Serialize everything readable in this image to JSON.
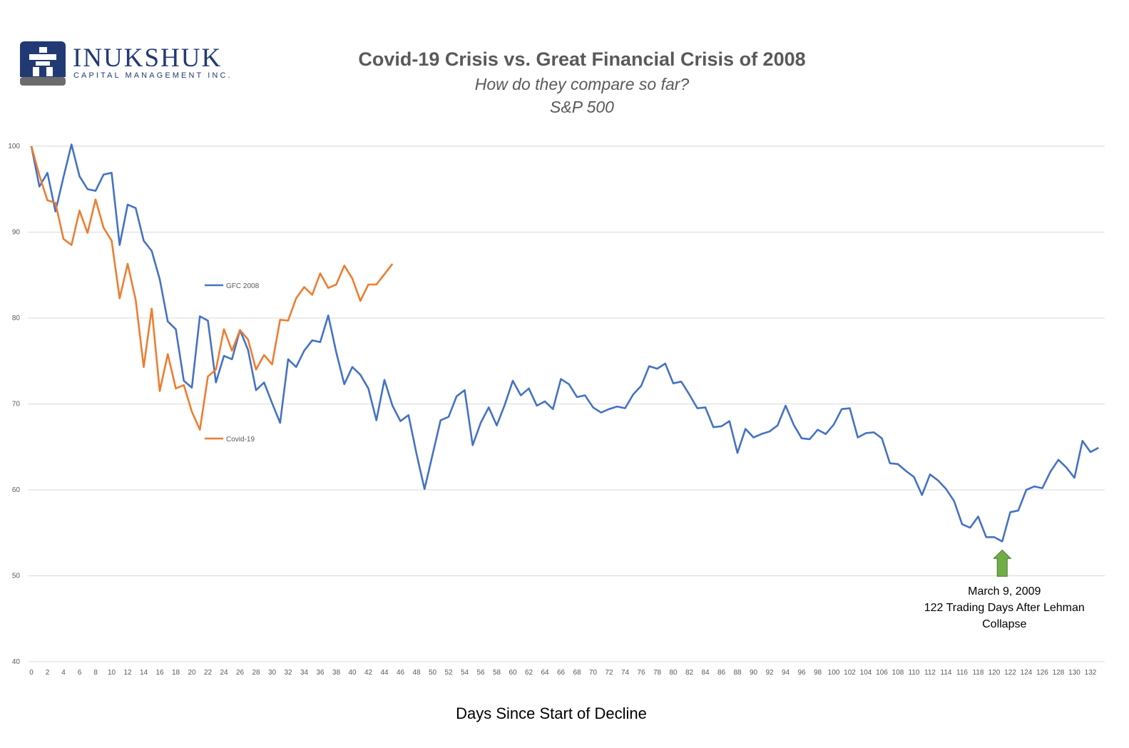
{
  "logo": {
    "name": "INUKSHUK",
    "tagline": "CAPITAL MANAGEMENT INC."
  },
  "chart_data": {
    "type": "line",
    "title": "Covid-19 Crisis vs. Great Financial Crisis of 2008",
    "subtitle_lines": [
      "How do they compare so far?",
      "S&P 500"
    ],
    "xlabel": "Days Since Start of Decline",
    "ylabel": "",
    "ylim": [
      40,
      100
    ],
    "yticks": [
      40,
      50,
      60,
      70,
      80,
      90,
      100
    ],
    "xlim": [
      0,
      133
    ],
    "xtick_step": 2,
    "grid": "horizontal",
    "series": [
      {
        "name": "GFC 2008",
        "color": "#4472C4",
        "values": [
          100,
          95.3,
          96.9,
          92.4,
          96.4,
          100.2,
          96.5,
          95,
          94.8,
          96.7,
          96.9,
          88.5,
          93.2,
          92.8,
          89,
          87.8,
          84.5,
          79.6,
          78.7,
          72.7,
          71.9,
          80.2,
          79.7,
          72.5,
          75.6,
          75.2,
          78.6,
          76.3,
          71.6,
          72.5,
          70.1,
          67.8,
          75.2,
          74.3,
          76.2,
          77.4,
          77.2,
          80.3,
          76,
          72.3,
          74.3,
          73.4,
          71.8,
          68.1,
          72.8,
          69.8,
          68,
          68.7,
          64.2,
          60.1,
          64.1,
          68.1,
          68.5,
          70.9,
          71.6,
          65.2,
          67.8,
          69.6,
          67.5,
          69.9,
          72.7,
          71,
          71.8,
          69.8,
          70.3,
          69.4,
          72.9,
          72.3,
          70.8,
          71,
          69.6,
          69,
          69.4,
          69.7,
          69.5,
          71.1,
          72.1,
          74.4,
          74.1,
          74.7,
          72.4,
          72.6,
          71.1,
          69.5,
          69.6,
          67.3,
          67.4,
          68,
          64.3,
          67.1,
          66.1,
          66.5,
          66.8,
          67.5,
          69.8,
          67.6,
          66,
          65.9,
          67,
          66.5,
          67.6,
          69.4,
          69.5,
          66.1,
          66.6,
          66.7,
          66,
          63.1,
          63,
          62.2,
          61.5,
          59.4,
          61.8,
          61.1,
          60.1,
          58.7,
          56,
          55.6,
          56.9,
          54.5,
          54.5,
          54,
          57.4,
          57.6,
          60,
          60.4,
          60.2,
          62.1,
          63.5,
          62.6,
          61.4,
          65.7,
          64.4,
          64.9
        ]
      },
      {
        "name": "Covid-19",
        "color": "#ED7D31",
        "values": [
          100,
          96.6,
          93.7,
          93.4,
          89.2,
          88.5,
          92.5,
          89.9,
          93.8,
          90.5,
          89,
          82.3,
          86.3,
          82.1,
          74.3,
          81.1,
          71.5,
          75.8,
          71.8,
          72.2,
          69.1,
          67,
          73.2,
          74,
          78.7,
          76.2,
          78.6,
          77.5,
          74,
          75.7,
          74.6,
          79.8,
          79.7,
          82.3,
          83.6,
          82.7,
          85.2,
          83.5,
          83.9,
          86.1,
          84.6,
          82,
          83.9,
          83.9,
          85.1,
          86.3
        ]
      }
    ],
    "legend": [
      {
        "name": "GFC 2008",
        "position": "middle-left"
      },
      {
        "name": "Covid-19",
        "position": "lower-left"
      }
    ],
    "annotation": {
      "x": 121,
      "y": 54,
      "lines": [
        "March 9, 2009",
        "122 Trading Days After Lehman",
        "Collapse"
      ],
      "marker": "up-arrow",
      "marker_color": "#70AD47"
    }
  }
}
